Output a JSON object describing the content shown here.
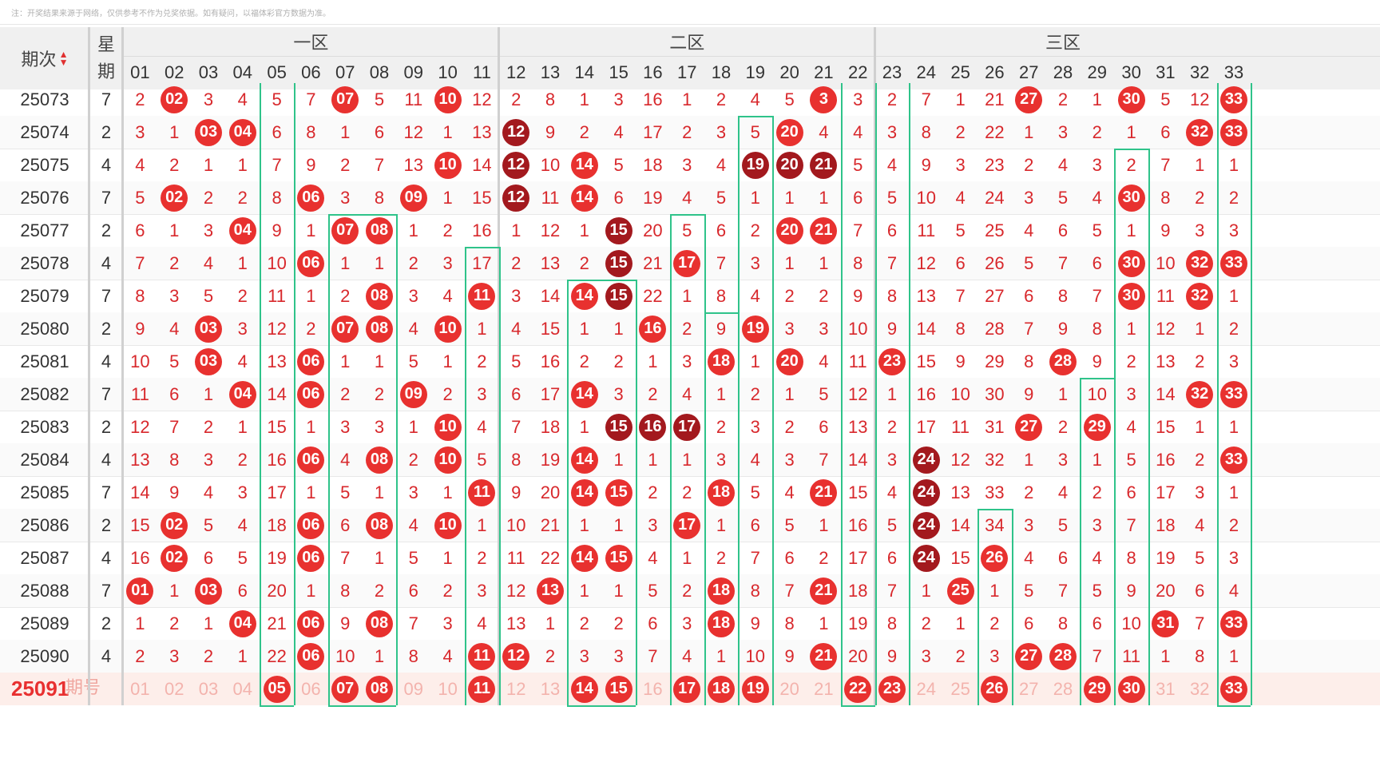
{
  "notice": "注：开奖结果来源于网络，仅供参考不作为兑奖依据。如有疑问，以福体彩官方数据为准。",
  "header": {
    "issue_label": "期次",
    "week_label_1": "星",
    "week_label_2": "期",
    "zones": [
      "一区",
      "二区",
      "三区"
    ],
    "numbers": [
      "01",
      "02",
      "03",
      "04",
      "05",
      "06",
      "07",
      "08",
      "09",
      "10",
      "11",
      "12",
      "13",
      "14",
      "15",
      "16",
      "17",
      "18",
      "19",
      "20",
      "21",
      "22",
      "23",
      "24",
      "25",
      "26",
      "27",
      "28",
      "29",
      "30",
      "31",
      "32",
      "33"
    ]
  },
  "rows": [
    {
      "issue": "25073",
      "week": "7",
      "cells": [
        "2",
        "02",
        "3",
        "4",
        "5",
        "7",
        "07",
        "5",
        "11",
        "10",
        "12",
        "2",
        "8",
        "1",
        "3",
        "16",
        "1",
        "2",
        "4",
        "5",
        "3",
        "3",
        "2",
        "7",
        "1",
        "21",
        "27",
        "2",
        "1",
        "30",
        "5",
        "12",
        "33"
      ]
    },
    {
      "issue": "25074",
      "week": "2",
      "cells": [
        "3",
        "1",
        "03",
        "04",
        "6",
        "8",
        "1",
        "6",
        "12",
        "1",
        "13",
        "12",
        "9",
        "2",
        "4",
        "17",
        "2",
        "3",
        "5",
        "20",
        "4",
        "4",
        "3",
        "8",
        "2",
        "22",
        "1",
        "3",
        "2",
        "1",
        "6",
        "32",
        "33"
      ]
    },
    {
      "issue": "25075",
      "week": "4",
      "cells": [
        "4",
        "2",
        "1",
        "1",
        "7",
        "9",
        "2",
        "7",
        "13",
        "10",
        "14",
        "12",
        "10",
        "14",
        "5",
        "18",
        "3",
        "4",
        "19",
        "20",
        "21",
        "5",
        "4",
        "9",
        "3",
        "23",
        "2",
        "4",
        "3",
        "2",
        "7",
        "1",
        "1"
      ]
    },
    {
      "issue": "25076",
      "week": "7",
      "cells": [
        "5",
        "02",
        "2",
        "2",
        "8",
        "06",
        "3",
        "8",
        "09",
        "1",
        "15",
        "12",
        "11",
        "14",
        "6",
        "19",
        "4",
        "5",
        "1",
        "1",
        "1",
        "6",
        "5",
        "10",
        "4",
        "24",
        "3",
        "5",
        "4",
        "30",
        "8",
        "2",
        "2"
      ]
    },
    {
      "issue": "25077",
      "week": "2",
      "cells": [
        "6",
        "1",
        "3",
        "04",
        "9",
        "1",
        "07",
        "08",
        "1",
        "2",
        "16",
        "1",
        "12",
        "1",
        "15",
        "20",
        "5",
        "6",
        "2",
        "20",
        "21",
        "7",
        "6",
        "11",
        "5",
        "25",
        "4",
        "6",
        "5",
        "1",
        "9",
        "3",
        "3"
      ]
    },
    {
      "issue": "25078",
      "week": "4",
      "cells": [
        "7",
        "2",
        "4",
        "1",
        "10",
        "06",
        "1",
        "1",
        "2",
        "3",
        "17",
        "2",
        "13",
        "2",
        "15",
        "21",
        "17",
        "7",
        "3",
        "1",
        "1",
        "8",
        "7",
        "12",
        "6",
        "26",
        "5",
        "7",
        "6",
        "30",
        "10",
        "32",
        "33"
      ]
    },
    {
      "issue": "25079",
      "week": "7",
      "cells": [
        "8",
        "3",
        "5",
        "2",
        "11",
        "1",
        "2",
        "08",
        "3",
        "4",
        "11",
        "3",
        "14",
        "14",
        "15",
        "22",
        "1",
        "8",
        "4",
        "2",
        "2",
        "9",
        "8",
        "13",
        "7",
        "27",
        "6",
        "8",
        "7",
        "30",
        "11",
        "32",
        "1"
      ]
    },
    {
      "issue": "25080",
      "week": "2",
      "cells": [
        "9",
        "4",
        "03",
        "3",
        "12",
        "2",
        "07",
        "08",
        "4",
        "10",
        "1",
        "4",
        "15",
        "1",
        "1",
        "16",
        "2",
        "9",
        "19",
        "3",
        "3",
        "10",
        "9",
        "14",
        "8",
        "28",
        "7",
        "9",
        "8",
        "1",
        "12",
        "1",
        "2"
      ]
    },
    {
      "issue": "25081",
      "week": "4",
      "cells": [
        "10",
        "5",
        "03",
        "4",
        "13",
        "06",
        "1",
        "1",
        "5",
        "1",
        "2",
        "5",
        "16",
        "2",
        "2",
        "1",
        "3",
        "18",
        "1",
        "20",
        "4",
        "11",
        "23",
        "15",
        "9",
        "29",
        "8",
        "28",
        "9",
        "2",
        "13",
        "2",
        "3"
      ]
    },
    {
      "issue": "25082",
      "week": "7",
      "cells": [
        "11",
        "6",
        "1",
        "04",
        "14",
        "06",
        "2",
        "2",
        "09",
        "2",
        "3",
        "6",
        "17",
        "14",
        "3",
        "2",
        "4",
        "1",
        "2",
        "1",
        "5",
        "12",
        "1",
        "16",
        "10",
        "30",
        "9",
        "1",
        "10",
        "3",
        "14",
        "32",
        "33"
      ]
    },
    {
      "issue": "25083",
      "week": "2",
      "cells": [
        "12",
        "7",
        "2",
        "1",
        "15",
        "1",
        "3",
        "3",
        "1",
        "10",
        "4",
        "7",
        "18",
        "1",
        "15",
        "16",
        "17",
        "2",
        "3",
        "2",
        "6",
        "13",
        "2",
        "17",
        "11",
        "31",
        "27",
        "2",
        "29",
        "4",
        "15",
        "1",
        "1"
      ]
    },
    {
      "issue": "25084",
      "week": "4",
      "cells": [
        "13",
        "8",
        "3",
        "2",
        "16",
        "06",
        "4",
        "08",
        "2",
        "10",
        "5",
        "8",
        "19",
        "14",
        "1",
        "1",
        "1",
        "3",
        "4",
        "3",
        "7",
        "14",
        "3",
        "24",
        "12",
        "32",
        "1",
        "3",
        "1",
        "5",
        "16",
        "2",
        "33"
      ]
    },
    {
      "issue": "25085",
      "week": "7",
      "cells": [
        "14",
        "9",
        "4",
        "3",
        "17",
        "1",
        "5",
        "1",
        "3",
        "1",
        "11",
        "9",
        "20",
        "14",
        "15",
        "2",
        "2",
        "18",
        "5",
        "4",
        "21",
        "15",
        "4",
        "24",
        "13",
        "33",
        "2",
        "4",
        "2",
        "6",
        "17",
        "3",
        "1"
      ]
    },
    {
      "issue": "25086",
      "week": "2",
      "cells": [
        "15",
        "02",
        "5",
        "4",
        "18",
        "06",
        "6",
        "08",
        "4",
        "10",
        "1",
        "10",
        "21",
        "1",
        "1",
        "3",
        "17",
        "1",
        "6",
        "5",
        "1",
        "16",
        "5",
        "24",
        "14",
        "34",
        "3",
        "5",
        "3",
        "7",
        "18",
        "4",
        "2"
      ]
    },
    {
      "issue": "25087",
      "week": "4",
      "cells": [
        "16",
        "02",
        "6",
        "5",
        "19",
        "06",
        "7",
        "1",
        "5",
        "1",
        "2",
        "11",
        "22",
        "14",
        "15",
        "4",
        "1",
        "2",
        "7",
        "6",
        "2",
        "17",
        "6",
        "24",
        "15",
        "26",
        "4",
        "6",
        "4",
        "8",
        "19",
        "5",
        "3"
      ]
    },
    {
      "issue": "25088",
      "week": "7",
      "cells": [
        "01",
        "1",
        "03",
        "6",
        "20",
        "1",
        "8",
        "2",
        "6",
        "2",
        "3",
        "12",
        "13",
        "1",
        "1",
        "5",
        "2",
        "18",
        "8",
        "7",
        "21",
        "18",
        "7",
        "1",
        "25",
        "1",
        "5",
        "7",
        "5",
        "9",
        "20",
        "6",
        "4"
      ]
    },
    {
      "issue": "25089",
      "week": "2",
      "cells": [
        "1",
        "2",
        "1",
        "04",
        "21",
        "06",
        "9",
        "08",
        "7",
        "3",
        "4",
        "13",
        "1",
        "2",
        "2",
        "6",
        "3",
        "18",
        "9",
        "8",
        "1",
        "19",
        "8",
        "2",
        "1",
        "2",
        "6",
        "8",
        "6",
        "10",
        "31",
        "7",
        "33"
      ]
    },
    {
      "issue": "25090",
      "week": "4",
      "cells": [
        "2",
        "3",
        "2",
        "1",
        "22",
        "06",
        "10",
        "1",
        "8",
        "4",
        "11",
        "12",
        "2",
        "3",
        "3",
        "7",
        "4",
        "1",
        "10",
        "9",
        "21",
        "20",
        "9",
        "3",
        "2",
        "3",
        "27",
        "28",
        "7",
        "11",
        "1",
        "8",
        "1"
      ]
    }
  ],
  "hits": [
    [
      2,
      7,
      10,
      21,
      27,
      30,
      33
    ],
    [
      3,
      4,
      12,
      20,
      32,
      33
    ],
    [
      10,
      12,
      14,
      19,
      20,
      21
    ],
    [
      2,
      6,
      9,
      12,
      14,
      30
    ],
    [
      4,
      7,
      8,
      15,
      20,
      21
    ],
    [
      6,
      15,
      17,
      30,
      32,
      33
    ],
    [
      8,
      11,
      14,
      15,
      30,
      32
    ],
    [
      3,
      7,
      8,
      10,
      16,
      19
    ],
    [
      3,
      6,
      18,
      20,
      23,
      28
    ],
    [
      4,
      6,
      9,
      14,
      32,
      33
    ],
    [
      10,
      15,
      16,
      17,
      27,
      29
    ],
    [
      6,
      8,
      10,
      14,
      24,
      33
    ],
    [
      11,
      14,
      15,
      18,
      21,
      24
    ],
    [
      2,
      6,
      8,
      10,
      17,
      24
    ],
    [
      2,
      6,
      14,
      15,
      24,
      26
    ],
    [
      1,
      3,
      13,
      18,
      21,
      25
    ],
    [
      4,
      6,
      8,
      18,
      31,
      33
    ],
    [
      6,
      11,
      12,
      21,
      27,
      28
    ]
  ],
  "dark_hits": [
    [],
    [
      12
    ],
    [
      12,
      19,
      20,
      21
    ],
    [
      12
    ],
    [
      15
    ],
    [
      15
    ],
    [
      15
    ],
    [],
    [],
    [],
    [
      15,
      16,
      17
    ],
    [
      24
    ],
    [
      24
    ],
    [
      24
    ],
    [
      24
    ],
    [],
    [],
    []
  ],
  "last_row": {
    "issue": "25091",
    "label": "期号",
    "cells": [
      "01",
      "02",
      "03",
      "04",
      "05",
      "06",
      "07",
      "08",
      "09",
      "10",
      "11",
      "12",
      "13",
      "14",
      "15",
      "16",
      "17",
      "18",
      "19",
      "20",
      "21",
      "22",
      "23",
      "24",
      "25",
      "26",
      "27",
      "28",
      "29",
      "30",
      "31",
      "32",
      "33"
    ],
    "hits": [
      5,
      7,
      8,
      11,
      14,
      15,
      17,
      18,
      19,
      22,
      23,
      26,
      29,
      30,
      33
    ]
  },
  "colors": {
    "ball_red": "#e8312f",
    "ball_dark": "#a3191e",
    "text_red": "#d8282c",
    "trend_line": "#2fc38a",
    "header_bg": "#f0f0f0"
  }
}
